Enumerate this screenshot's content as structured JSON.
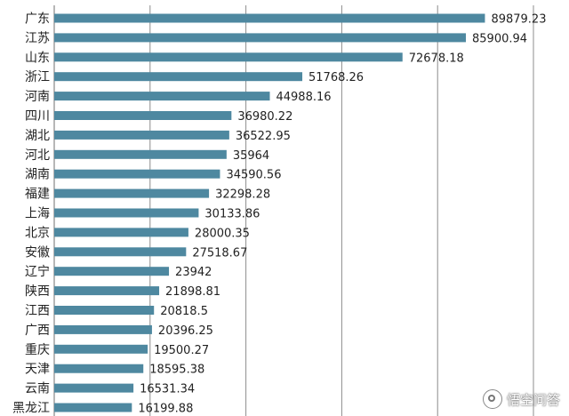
{
  "chart_data": {
    "type": "bar",
    "orientation": "horizontal",
    "categories": [
      "广东",
      "江苏",
      "山东",
      "浙江",
      "河南",
      "四川",
      "湖北",
      "河北",
      "湖南",
      "福建",
      "上海",
      "北京",
      "安徽",
      "辽宁",
      "陕西",
      "江西",
      "广西",
      "重庆",
      "天津",
      "云南",
      "黑龙江"
    ],
    "values": [
      89879.23,
      85900.94,
      72678.18,
      51768.26,
      44988.16,
      36980.22,
      36522.95,
      35964,
      34590.56,
      32298.28,
      30133.86,
      28000.35,
      27518.67,
      23942,
      21898.81,
      20818.5,
      20396.25,
      19500.27,
      18595.38,
      16531.34,
      16199.88
    ],
    "value_labels": [
      "89879.23",
      "85900.94",
      "72678.18",
      "51768.26",
      "44988.16",
      "36980.22",
      "36522.95",
      "35964",
      "34590.56",
      "32298.28",
      "30133.86",
      "28000.35",
      "27518.67",
      "23942",
      "21898.81",
      "20818.5",
      "20396.25",
      "19500.27",
      "18595.38",
      "16531.34",
      "16199.88"
    ],
    "xlim": [
      0,
      100000
    ],
    "grid": true,
    "bar_color": "#4e88a0"
  },
  "watermark": {
    "text": "悟空问答",
    "icon": "wukong-logo-icon"
  }
}
